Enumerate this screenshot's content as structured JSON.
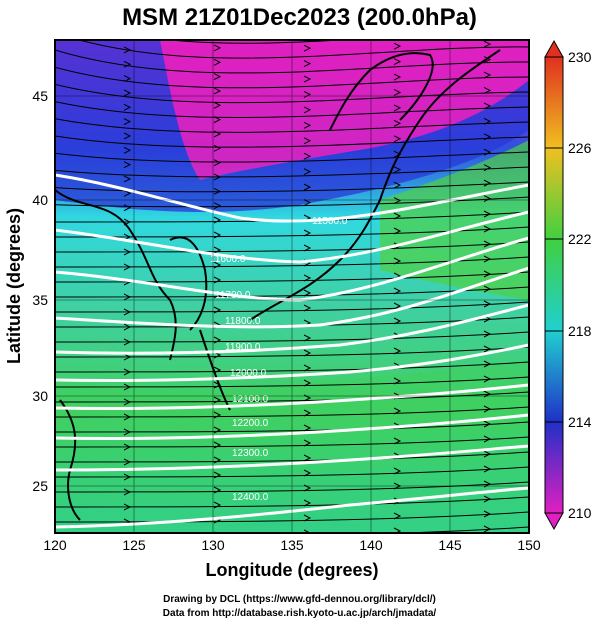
{
  "title": "MSM 21Z01Dec2023 (200.0hPa)",
  "x_axis": {
    "label": "Longitude (degrees)",
    "ticks": [
      "120",
      "125",
      "130",
      "135",
      "140",
      "145",
      "150"
    ]
  },
  "y_axis": {
    "label": "Latitude  (degrees)",
    "ticks": [
      "25",
      "30",
      "35",
      "40",
      "45"
    ]
  },
  "colorbar": {
    "ticks": [
      "210",
      "214",
      "218",
      "222",
      "226",
      "230"
    ],
    "colors": {
      "low": "#e020c0",
      "mid_low": "#2030c8",
      "mid": "#20d0d0",
      "mid_high": "#40d040",
      "high": "#f0c020",
      "top": "#e03020"
    }
  },
  "contour_labels": [
    "11500.0",
    "11600.0",
    "11700.0",
    "11800.0",
    "11900.0",
    "12000.0",
    "12100.0",
    "12200.0",
    "12300.0",
    "12400.0"
  ],
  "credits": {
    "line1": "Drawing by DCL (https://www.gfd-dennou.org/library/dcl/)",
    "line2": "Data from http://database.rish.kyoto-u.ac.jp/arch/jmadata/"
  }
}
